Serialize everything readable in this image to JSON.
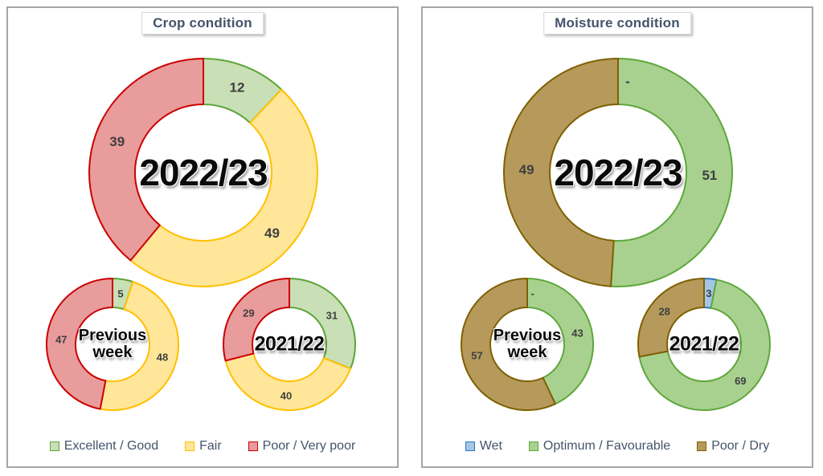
{
  "page": {
    "background": "#ffffff",
    "panel_border_color": "#a6a6a6",
    "title_text_color": "#44546a",
    "legend_text_color": "#44546a",
    "slice_label_color": "#3f3f3f"
  },
  "chart_data": [
    {
      "type": "donut",
      "panel_title": "Crop condition",
      "legend_position": "bottom",
      "legend": [
        "Excellent / Good",
        "Fair",
        "Poor / Very poor"
      ],
      "series": [
        {
          "name": "Excellent / Good",
          "fill": "#c9dfb6",
          "stroke": "#5ba437"
        },
        {
          "name": "Fair",
          "fill": "#ffe699",
          "stroke": "#ffc000"
        },
        {
          "name": "Poor / Very poor",
          "fill": "#e89c9c",
          "stroke": "#cc0000"
        }
      ],
      "donuts": [
        {
          "name": "2022/23",
          "slot": "top",
          "size": "large",
          "center_style": "year-large",
          "center_lines": [
            "2022/23"
          ],
          "values": [
            12,
            49,
            39
          ],
          "labels": [
            "12",
            "49",
            "39"
          ]
        },
        {
          "name": "Previous week",
          "slot": "bottom-left",
          "size": "small",
          "center_style": "week",
          "center_lines": [
            "Previous",
            "week"
          ],
          "values": [
            5,
            48,
            47
          ],
          "labels": [
            "5",
            "48",
            "47"
          ]
        },
        {
          "name": "2021/22",
          "slot": "bottom-right",
          "size": "small",
          "center_style": "year-small",
          "center_lines": [
            "2021/22"
          ],
          "values": [
            31,
            40,
            29
          ],
          "labels": [
            "31",
            "40",
            "29"
          ]
        }
      ]
    },
    {
      "type": "donut",
      "panel_title": "Moisture condition",
      "legend_position": "bottom",
      "legend": [
        "Wet",
        "Optimum / Favourable",
        "Poor / Dry"
      ],
      "series": [
        {
          "name": "Wet",
          "fill": "#a3c6e8",
          "stroke": "#2e75b6"
        },
        {
          "name": "Optimum / Favourable",
          "fill": "#a8d18f",
          "stroke": "#5ea73c"
        },
        {
          "name": "Poor / Dry",
          "fill": "#b59a5b",
          "stroke": "#7f6000"
        }
      ],
      "donuts": [
        {
          "name": "2022/23",
          "slot": "top",
          "size": "large",
          "center_style": "year-large",
          "center_lines": [
            "2022/23"
          ],
          "values": [
            0,
            51,
            49
          ],
          "labels": [
            "-",
            "51",
            "49"
          ]
        },
        {
          "name": "Previous week",
          "slot": "bottom-left",
          "size": "small",
          "center_style": "week",
          "center_lines": [
            "Previous",
            "week"
          ],
          "values": [
            0,
            43,
            57
          ],
          "labels": [
            "-",
            "43",
            "57"
          ]
        },
        {
          "name": "2021/22",
          "slot": "bottom-right",
          "size": "small",
          "center_style": "year-small",
          "center_lines": [
            "2021/22"
          ],
          "values": [
            3,
            69,
            28
          ],
          "labels": [
            "3",
            "69",
            "28"
          ]
        }
      ]
    }
  ]
}
